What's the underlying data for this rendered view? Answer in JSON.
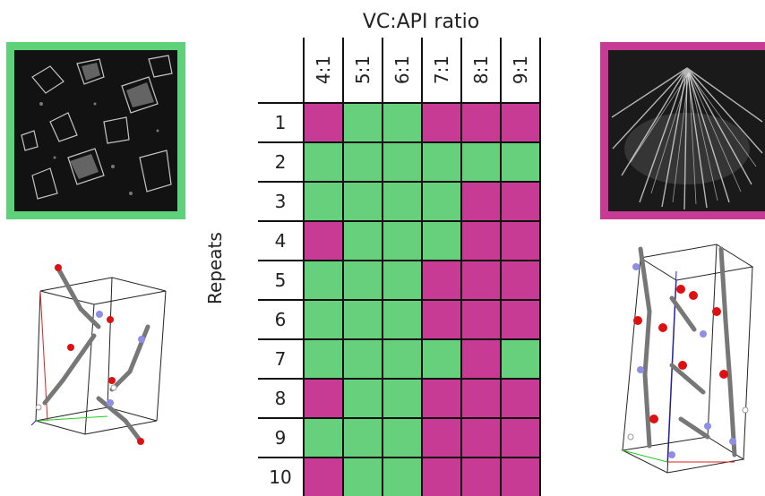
{
  "figure": {
    "title": "VC:API ratio",
    "y_label": "Repeats"
  },
  "colors": {
    "green": "#66d07c",
    "magenta": "#c83b94",
    "green_frame": "#5dd27a",
    "magenta_frame": "#c83b94"
  },
  "chart_data": {
    "type": "table",
    "columns": [
      "4:1",
      "5:1",
      "6:1",
      "7:1",
      "8:1",
      "9:1"
    ],
    "rows": [
      "1",
      "2",
      "3",
      "4",
      "5",
      "6",
      "7",
      "8",
      "9",
      "10"
    ],
    "cells": [
      [
        "M",
        "G",
        "G",
        "M",
        "M",
        "M"
      ],
      [
        "G",
        "G",
        "G",
        "G",
        "G",
        "G"
      ],
      [
        "G",
        "G",
        "G",
        "G",
        "M",
        "M"
      ],
      [
        "M",
        "G",
        "G",
        "G",
        "M",
        "M"
      ],
      [
        "G",
        "G",
        "G",
        "M",
        "M",
        "M"
      ],
      [
        "G",
        "G",
        "G",
        "M",
        "M",
        "M"
      ],
      [
        "G",
        "G",
        "G",
        "G",
        "M",
        "G"
      ],
      [
        "M",
        "G",
        "G",
        "M",
        "M",
        "M"
      ],
      [
        "G",
        "G",
        "G",
        "M",
        "M",
        "M"
      ],
      [
        "M",
        "G",
        "G",
        "M",
        "M",
        "M"
      ]
    ],
    "legend_colors": {
      "G": "green",
      "M": "magenta"
    }
  }
}
